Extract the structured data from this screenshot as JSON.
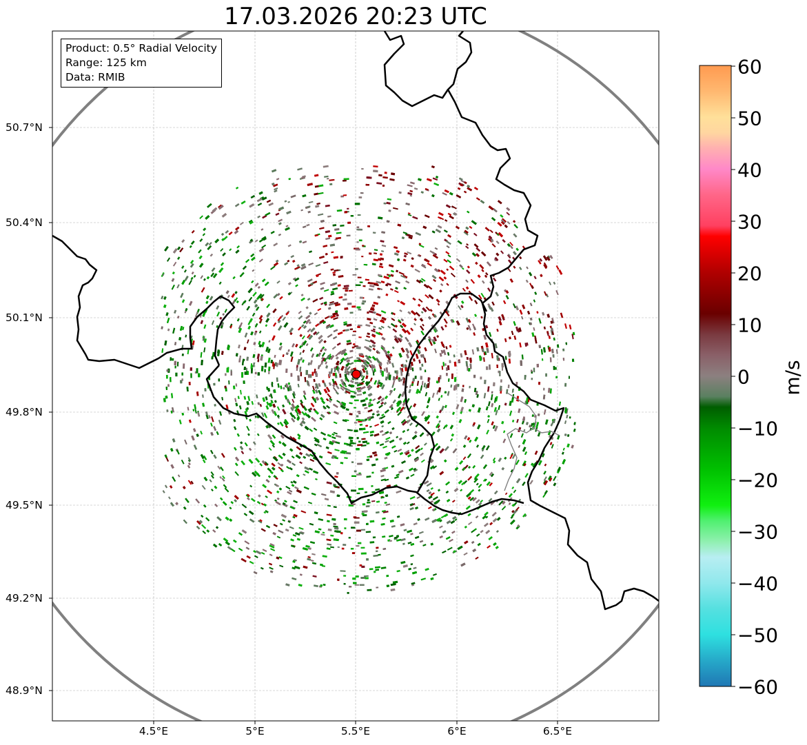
{
  "title": "17.03.2026 20:23 UTC",
  "info": {
    "product": "Product: 0.5° Radial Velocity",
    "range": "Range: 125 km",
    "data": "Data: RMIB"
  },
  "axes": {
    "x_ticks": [
      "4.5°E",
      "5°E",
      "5.5°E",
      "6°E",
      "6.5°E"
    ],
    "y_ticks": [
      "50.7°N",
      "50.4°N",
      "50.1°N",
      "49.8°N",
      "49.5°N",
      "49.2°N",
      "48.9°N"
    ]
  },
  "colorbar": {
    "unit": "m/s",
    "min": -60,
    "max": 60,
    "labels": [
      "60",
      "50",
      "40",
      "30",
      "20",
      "10",
      "0",
      "−10",
      "−20",
      "−30",
      "−40",
      "−50",
      "−60"
    ],
    "stops": [
      {
        "v": -60,
        "c": "#1f77b4"
      },
      {
        "v": -55,
        "c": "#26a9c9"
      },
      {
        "v": -50,
        "c": "#2ee0e0"
      },
      {
        "v": -45,
        "c": "#55e0e0"
      },
      {
        "v": -40,
        "c": "#90e8ec"
      },
      {
        "v": -35,
        "c": "#b8eef2"
      },
      {
        "v": -32,
        "c": "#90f0b0"
      },
      {
        "v": -28,
        "c": "#50f070"
      },
      {
        "v": -25,
        "c": "#10f010"
      },
      {
        "v": -18,
        "c": "#00c000"
      },
      {
        "v": -10,
        "c": "#008a00"
      },
      {
        "v": -6,
        "c": "#005d00"
      },
      {
        "v": -4,
        "c": "#5a8060"
      },
      {
        "v": 0,
        "c": "#8c8080"
      },
      {
        "v": 4,
        "c": "#8a6068"
      },
      {
        "v": 8,
        "c": "#7a3a40"
      },
      {
        "v": 12,
        "c": "#6a0000"
      },
      {
        "v": 20,
        "c": "#b00000"
      },
      {
        "v": 27,
        "c": "#ff0000"
      },
      {
        "v": 29,
        "c": "#ff4060"
      },
      {
        "v": 35,
        "c": "#ff6688"
      },
      {
        "v": 40,
        "c": "#ff88c8"
      },
      {
        "v": 44,
        "c": "#ffb0b0"
      },
      {
        "v": 47,
        "c": "#ffd6a0"
      },
      {
        "v": 50,
        "c": "#ffe09a"
      },
      {
        "v": 55,
        "c": "#ffb870"
      },
      {
        "v": 60,
        "c": "#ff9a50"
      }
    ]
  },
  "map": {
    "lon_range": [
      4.0,
      7.0
    ],
    "lat_range": [
      48.8,
      51.0
    ],
    "radar": {
      "lon": 5.505,
      "lat": 49.915
    },
    "range_circle_color": "#808080",
    "border_color": "#000000",
    "grid_color": "#b0b0b0"
  }
}
